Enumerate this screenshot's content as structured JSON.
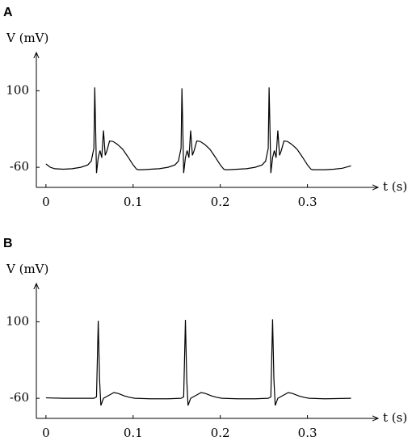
{
  "chart_data": [
    {
      "type": "line",
      "title": "A",
      "ylabel": "V (mV)",
      "xlabel": "t (s)",
      "color": "#000000",
      "xlim": [
        -0.011,
        0.381
      ],
      "ylim": [
        -102,
        180
      ],
      "xticks": [
        0,
        0.1,
        0.2,
        0.3
      ],
      "yticks": [
        -60,
        100
      ],
      "x": [
        0,
        0.005,
        0.01,
        0.02,
        0.03,
        0.04,
        0.048,
        0.052,
        0.055,
        0.056,
        0.057,
        0.058,
        0.06,
        0.062,
        0.064,
        0.066,
        0.068,
        0.07,
        0.073,
        0.077,
        0.082,
        0.088,
        0.094,
        0.1,
        0.104,
        0.106,
        0.11,
        0.12,
        0.13,
        0.14,
        0.148,
        0.152,
        0.155,
        0.156,
        0.157,
        0.158,
        0.16,
        0.162,
        0.164,
        0.166,
        0.168,
        0.17,
        0.173,
        0.177,
        0.182,
        0.188,
        0.194,
        0.2,
        0.204,
        0.206,
        0.21,
        0.22,
        0.23,
        0.24,
        0.248,
        0.252,
        0.255,
        0.256,
        0.257,
        0.258,
        0.26,
        0.262,
        0.264,
        0.266,
        0.268,
        0.27,
        0.273,
        0.277,
        0.282,
        0.288,
        0.294,
        0.3,
        0.304,
        0.306,
        0.31,
        0.32,
        0.33,
        0.34,
        0.35
      ],
      "values": [
        -53,
        -60,
        -63,
        -64,
        -63,
        -60,
        -55,
        -47,
        -20,
        107,
        20,
        -72,
        -40,
        -25,
        -40,
        17,
        -35,
        -25,
        -5,
        -6,
        -12,
        -22,
        -38,
        -55,
        -64,
        -65,
        -65,
        -64,
        -63,
        -60,
        -55,
        -47,
        -20,
        105,
        20,
        -72,
        -40,
        -25,
        -40,
        17,
        -35,
        -25,
        -5,
        -6,
        -12,
        -22,
        -38,
        -55,
        -64,
        -65,
        -65,
        -64,
        -63,
        -60,
        -55,
        -47,
        -20,
        107,
        20,
        -72,
        -40,
        -25,
        -40,
        17,
        -35,
        -25,
        -5,
        -6,
        -12,
        -22,
        -38,
        -55,
        -64,
        -65,
        -65,
        -65,
        -64,
        -62,
        -57
      ]
    },
    {
      "type": "line",
      "title": "B",
      "ylabel": "V (mV)",
      "xlabel": "t (s)",
      "color": "#000000",
      "xlim": [
        -0.011,
        0.381
      ],
      "ylim": [
        -102,
        180
      ],
      "xticks": [
        0,
        0.1,
        0.2,
        0.3
      ],
      "yticks": [
        -60,
        100
      ],
      "x": [
        0,
        0.02,
        0.04,
        0.055,
        0.058,
        0.06,
        0.0615,
        0.063,
        0.066,
        0.07,
        0.074,
        0.078,
        0.083,
        0.09,
        0.096,
        0.102,
        0.12,
        0.14,
        0.155,
        0.158,
        0.16,
        0.1615,
        0.163,
        0.166,
        0.17,
        0.174,
        0.178,
        0.183,
        0.19,
        0.196,
        0.202,
        0.22,
        0.24,
        0.255,
        0.258,
        0.26,
        0.2615,
        0.263,
        0.266,
        0.27,
        0.274,
        0.278,
        0.283,
        0.29,
        0.296,
        0.302,
        0.32,
        0.35
      ],
      "values": [
        -59,
        -60,
        -60,
        -60,
        -57,
        102,
        -20,
        -75,
        -60,
        -56,
        -52,
        -48,
        -50,
        -55,
        -58,
        -60,
        -61,
        -61,
        -60,
        -57,
        104,
        -20,
        -75,
        -60,
        -56,
        -52,
        -48,
        -50,
        -55,
        -58,
        -60,
        -61,
        -61,
        -60,
        -57,
        105,
        -20,
        -75,
        -60,
        -56,
        -52,
        -48,
        -50,
        -55,
        -58,
        -60,
        -61,
        -60
      ]
    }
  ]
}
